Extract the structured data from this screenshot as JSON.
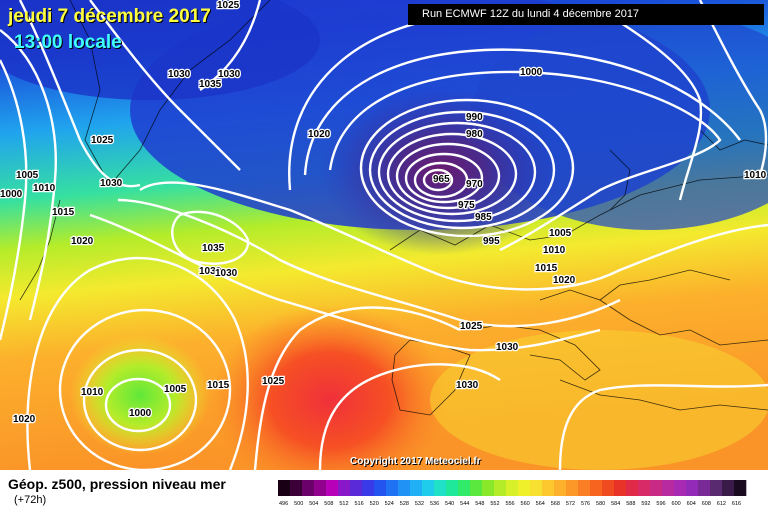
{
  "header": {
    "date": "jeudi 7 décembre 2017",
    "local_time": "13:00 locale",
    "run": "Run ECMWF 12Z du lundi 4 décembre 2017"
  },
  "copyright": "Copyright 2017 Meteociel.fr",
  "footer": {
    "title": "Géop. z500, pression niveau mer",
    "lead": "(+72h)"
  },
  "isobar_labels": [
    "1025",
    "1030",
    "1030",
    "1035",
    "1030",
    "1025",
    "1020",
    "1005",
    "1010",
    "1000",
    "1015",
    "1020",
    "1030",
    "1035",
    "1030",
    "1000",
    "990",
    "980",
    "965",
    "970",
    "975",
    "985",
    "995",
    "1005",
    "1010",
    "1015",
    "1020",
    "1025",
    "1030",
    "1030",
    "1010",
    "1005",
    "1000",
    "1015",
    "1025",
    "1020",
    "1010"
  ],
  "legend": {
    "colors": [
      "#1a0015",
      "#3c0038",
      "#6a006a",
      "#92008e",
      "#b800b8",
      "#8818c8",
      "#5a2ad8",
      "#3a3ae8",
      "#2454f0",
      "#2072f4",
      "#2092f6",
      "#20b0f6",
      "#20ccec",
      "#20e0c8",
      "#20e89a",
      "#30ea6a",
      "#5ae83e",
      "#8ae82a",
      "#b4ec2a",
      "#d8f02a",
      "#f0f02a",
      "#f8e030",
      "#fcc82e",
      "#fcb02c",
      "#fc9828",
      "#fa7e24",
      "#f66420",
      "#f04a20",
      "#e83428",
      "#e02a48",
      "#d82a66",
      "#c82a86",
      "#b82aa0",
      "#a82ab4",
      "#942ab8",
      "#7a2a96",
      "#5a2a70",
      "#3a1a48",
      "#1a0a20"
    ],
    "ticks": [
      "496",
      "500",
      "504",
      "508",
      "512",
      "516",
      "520",
      "524",
      "528",
      "532",
      "536",
      "540",
      "544",
      "548",
      "552",
      "556",
      "560",
      "564",
      "568",
      "572",
      "576",
      "580",
      "584",
      "588",
      "592",
      "596",
      "600",
      "604",
      "608",
      "612",
      "616"
    ]
  }
}
